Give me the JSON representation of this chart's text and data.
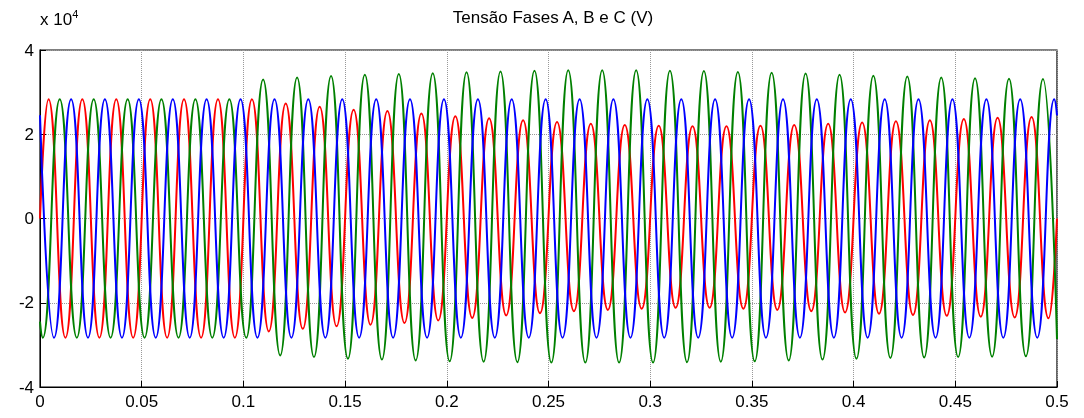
{
  "chart_data": {
    "type": "line",
    "title": "Tensão Fases A, B e C (V)",
    "annotations": [
      "x 10$^{4}$"
    ],
    "xlim": [
      0,
      0.5
    ],
    "xticks": [
      0,
      0.05,
      0.1,
      0.15,
      0.2,
      0.25,
      0.3,
      0.35,
      0.4,
      0.45,
      0.5
    ],
    "ylim": [
      -4,
      4
    ],
    "yticks": [
      -4,
      -2,
      0,
      2,
      4
    ],
    "grid": true,
    "line_style": "solid",
    "series": [
      {
        "color": "#ff0000",
        "x": [
          0,
          0.0042,
          0.0125,
          0.0208,
          0.0292,
          0.0375,
          0.0458,
          0.0542,
          0.0625,
          0.0708,
          0.0792,
          0.0875,
          0.0958,
          0.1042,
          0.1125,
          0.1208,
          0.1292,
          0.1375,
          0.1458,
          0.1542,
          0.1625,
          0.1708,
          0.1792,
          0.1875,
          0.1958,
          0.2042,
          0.2125,
          0.2208,
          0.2292,
          0.2375,
          0.2458,
          0.2542,
          0.2625,
          0.2708,
          0.2792,
          0.2875,
          0.2958,
          0.3042,
          0.3125,
          0.3208,
          0.3292,
          0.3375,
          0.3458,
          0.3542,
          0.3625,
          0.3708,
          0.3792,
          0.3875,
          0.3958,
          0.4042,
          0.4125,
          0.4208,
          0.4292,
          0.4375,
          0.4458,
          0.4542,
          0.4625,
          0.4708,
          0.4792,
          0.4875,
          0.4958,
          0.5
        ],
        "values": [
          0,
          2.83,
          -2.83,
          2.83,
          -2.83,
          2.83,
          -2.83,
          2.83,
          -2.83,
          2.83,
          -2.83,
          2.83,
          -2.83,
          2.83,
          -2.68,
          2.73,
          -2.62,
          2.65,
          -2.56,
          2.58,
          -2.52,
          2.55,
          -2.48,
          2.49,
          -2.42,
          2.43,
          -2.36,
          2.38,
          -2.3,
          2.33,
          -2.25,
          2.29,
          -2.2,
          2.25,
          -2.17,
          2.22,
          -2.14,
          2.2,
          -2.12,
          2.19,
          -2.12,
          2.19,
          -2.14,
          2.2,
          -2.17,
          2.22,
          -2.2,
          2.25,
          -2.23,
          2.28,
          -2.26,
          2.31,
          -2.29,
          2.33,
          -2.31,
          2.36,
          -2.33,
          2.39,
          -2.35,
          2.41,
          -2.37,
          0
        ]
      },
      {
        "color": "#008000",
        "x": [
          0,
          0.0014,
          0.0097,
          0.0181,
          0.0264,
          0.0347,
          0.0431,
          0.0514,
          0.0597,
          0.0681,
          0.0764,
          0.0847,
          0.0931,
          0.1014,
          0.1097,
          0.1181,
          0.1264,
          0.1347,
          0.1431,
          0.1514,
          0.1597,
          0.1681,
          0.1764,
          0.1847,
          0.1931,
          0.2014,
          0.2097,
          0.2181,
          0.2264,
          0.2347,
          0.2431,
          0.2514,
          0.2597,
          0.2681,
          0.2764,
          0.2847,
          0.2931,
          0.3014,
          0.3097,
          0.3181,
          0.3264,
          0.3347,
          0.3431,
          0.3514,
          0.3597,
          0.3681,
          0.3764,
          0.3847,
          0.3931,
          0.4014,
          0.4097,
          0.4181,
          0.4264,
          0.4347,
          0.4431,
          0.4514,
          0.4597,
          0.4681,
          0.4764,
          0.4847,
          0.4931,
          0.5
        ],
        "values": [
          -2.45,
          -2.83,
          2.83,
          -2.83,
          2.83,
          -2.83,
          2.83,
          -2.83,
          2.83,
          -2.83,
          2.83,
          -2.83,
          2.83,
          -2.83,
          3.3,
          -3.25,
          3.35,
          -3.29,
          3.38,
          -3.33,
          3.41,
          -3.35,
          3.43,
          -3.37,
          3.45,
          -3.39,
          3.47,
          -3.4,
          3.49,
          -3.41,
          3.51,
          -3.42,
          3.52,
          -3.42,
          3.52,
          -3.42,
          3.52,
          -3.42,
          3.51,
          -3.41,
          3.5,
          -3.4,
          3.48,
          -3.39,
          3.46,
          -3.37,
          3.44,
          -3.35,
          3.41,
          -3.33,
          3.39,
          -3.31,
          3.37,
          -3.3,
          3.35,
          -3.29,
          3.33,
          -3.28,
          3.32,
          -3.27,
          3.31,
          -2.86
        ]
      },
      {
        "color": "#0000ff",
        "x": [
          0,
          0.0069,
          0.0153,
          0.0236,
          0.0319,
          0.0403,
          0.0486,
          0.0569,
          0.0653,
          0.0736,
          0.0819,
          0.0903,
          0.0986,
          0.1069,
          0.1153,
          0.1236,
          0.1319,
          0.1403,
          0.1486,
          0.1569,
          0.1653,
          0.1736,
          0.1819,
          0.1903,
          0.1986,
          0.2069,
          0.2153,
          0.2236,
          0.2319,
          0.2403,
          0.2486,
          0.2569,
          0.2653,
          0.2736,
          0.2819,
          0.2903,
          0.2986,
          0.3069,
          0.3153,
          0.3236,
          0.3319,
          0.3403,
          0.3486,
          0.3569,
          0.3653,
          0.3736,
          0.3819,
          0.3903,
          0.3986,
          0.4069,
          0.4153,
          0.4236,
          0.4319,
          0.4403,
          0.4486,
          0.4569,
          0.4653,
          0.4736,
          0.4819,
          0.4903,
          0.4986,
          0.5
        ],
        "values": [
          2.45,
          -2.83,
          2.83,
          -2.83,
          2.83,
          -2.83,
          2.83,
          -2.83,
          2.83,
          -2.83,
          2.83,
          -2.83,
          2.83,
          -2.83,
          2.83,
          -2.83,
          2.83,
          -2.83,
          2.83,
          -2.83,
          2.83,
          -2.83,
          2.83,
          -2.83,
          2.83,
          -2.83,
          2.83,
          -2.83,
          2.83,
          -2.83,
          2.83,
          -2.83,
          2.83,
          -2.83,
          2.83,
          -2.83,
          2.83,
          -2.83,
          2.83,
          -2.83,
          2.83,
          -2.83,
          2.83,
          -2.83,
          2.83,
          -2.83,
          2.83,
          -2.83,
          2.83,
          -2.83,
          2.83,
          -2.83,
          2.83,
          -2.83,
          2.83,
          -2.83,
          2.83,
          -2.83,
          2.83,
          -2.83,
          2.83,
          2.45
        ]
      }
    ]
  }
}
